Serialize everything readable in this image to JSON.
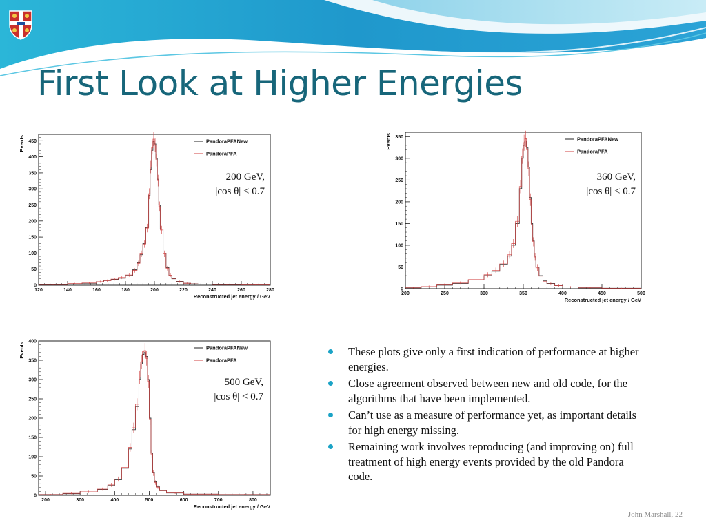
{
  "slide": {
    "title": "First Look at Higher Energies",
    "footer": "John Marshall, 22",
    "bullets": [
      "These plots give only a first indication of performance at higher energies.",
      "Close agreement observed between new and old code, for the algorithms that have been implemented.",
      "Can’t use as a measure of performance yet, as important details for high energy missing.",
      "Remaining work involves reproducing (and improving on) full treatment of high energy events provided by the old  Pandora code."
    ],
    "colors": {
      "title": "#17667a",
      "bullet": "#1ba3c6",
      "banner_dark": "#1a8fc4",
      "banner_light": "#9fd6ec"
    }
  },
  "chart_data": [
    {
      "type": "line",
      "title": "",
      "xlabel": "Reconstructed jet energy / GeV",
      "ylabel": "Events",
      "xlim": [
        120,
        280
      ],
      "ylim": [
        0,
        470
      ],
      "xticks": [
        120,
        140,
        160,
        180,
        200,
        220,
        240,
        260,
        280
      ],
      "yticks": [
        0,
        50,
        100,
        150,
        200,
        250,
        300,
        350,
        400,
        450
      ],
      "annotation": [
        "200 GeV,",
        "|cos θ| < 0.7"
      ],
      "legend": {
        "position": "top-right"
      },
      "series": [
        {
          "name": "PandoraPFANew",
          "color": "#222222",
          "x": [
            120,
            140,
            150,
            160,
            165,
            170,
            175,
            180,
            185,
            188,
            190,
            192,
            194,
            196,
            197,
            198,
            199,
            200,
            201,
            202,
            203,
            204,
            206,
            208,
            210,
            212,
            215,
            220,
            225,
            230,
            240,
            260,
            280
          ],
          "y": [
            2,
            4,
            6,
            10,
            15,
            18,
            22,
            30,
            48,
            70,
            95,
            130,
            180,
            280,
            360,
            420,
            448,
            440,
            395,
            330,
            250,
            175,
            100,
            55,
            30,
            20,
            12,
            6,
            4,
            3,
            2,
            1,
            1
          ]
        },
        {
          "name": "PandoraPFA",
          "color": "#d04040",
          "x": [
            120,
            140,
            150,
            160,
            165,
            170,
            175,
            180,
            185,
            188,
            190,
            192,
            194,
            196,
            197,
            198,
            199,
            200,
            201,
            202,
            203,
            204,
            206,
            208,
            210,
            212,
            215,
            220,
            225,
            230,
            240,
            260,
            280
          ],
          "y": [
            2,
            5,
            7,
            11,
            14,
            19,
            24,
            32,
            46,
            68,
            98,
            128,
            178,
            285,
            368,
            428,
            455,
            436,
            390,
            326,
            245,
            172,
            98,
            53,
            31,
            21,
            11,
            6,
            4,
            3,
            2,
            1,
            1
          ]
        }
      ]
    },
    {
      "type": "line",
      "title": "",
      "xlabel": "Reconstructed jet energy / GeV",
      "ylabel": "Events",
      "xlim": [
        200,
        500
      ],
      "ylim": [
        0,
        360
      ],
      "xticks": [
        200,
        250,
        300,
        350,
        400,
        450,
        500
      ],
      "yticks": [
        0,
        50,
        100,
        150,
        200,
        250,
        300,
        350
      ],
      "annotation": [
        "360 GeV,",
        "|cos θ| < 0.7"
      ],
      "legend": {
        "position": "top-right"
      },
      "series": [
        {
          "name": "PandoraPFANew",
          "color": "#222222",
          "x": [
            200,
            220,
            240,
            260,
            280,
            300,
            310,
            320,
            330,
            335,
            340,
            345,
            348,
            350,
            352,
            354,
            356,
            358,
            360,
            362,
            364,
            366,
            370,
            375,
            380,
            390,
            400,
            420,
            450,
            500
          ],
          "y": [
            2,
            4,
            8,
            12,
            20,
            30,
            40,
            55,
            75,
            100,
            150,
            230,
            300,
            330,
            340,
            325,
            280,
            210,
            150,
            110,
            75,
            50,
            30,
            18,
            12,
            7,
            4,
            2,
            1,
            1
          ]
        },
        {
          "name": "PandoraPFA",
          "color": "#d04040",
          "x": [
            200,
            220,
            240,
            260,
            280,
            300,
            310,
            320,
            330,
            335,
            340,
            345,
            348,
            350,
            352,
            354,
            356,
            358,
            360,
            362,
            364,
            366,
            370,
            375,
            380,
            390,
            400,
            420,
            450,
            500
          ],
          "y": [
            2,
            5,
            9,
            13,
            21,
            32,
            42,
            57,
            78,
            104,
            155,
            235,
            305,
            336,
            345,
            320,
            276,
            205,
            147,
            108,
            73,
            48,
            29,
            17,
            11,
            7,
            4,
            2,
            1,
            1
          ]
        }
      ]
    },
    {
      "type": "line",
      "title": "",
      "xlabel": "Reconstructed jet energy / GeV",
      "ylabel": "Events",
      "xlim": [
        180,
        850
      ],
      "ylim": [
        0,
        400
      ],
      "xticks": [
        200,
        300,
        400,
        500,
        600,
        700,
        800
      ],
      "yticks": [
        0,
        50,
        100,
        150,
        200,
        250,
        300,
        350,
        400
      ],
      "annotation": [
        "500 GeV,",
        "|cos θ| < 0.7"
      ],
      "legend": {
        "position": "top-right"
      },
      "series": [
        {
          "name": "PandoraPFANew",
          "color": "#222222",
          "x": [
            180,
            250,
            300,
            350,
            380,
            400,
            420,
            440,
            450,
            460,
            470,
            475,
            480,
            485,
            490,
            495,
            500,
            505,
            510,
            515,
            520,
            530,
            550,
            600,
            700,
            850
          ],
          "y": [
            2,
            4,
            8,
            15,
            25,
            40,
            70,
            120,
            170,
            230,
            300,
            340,
            365,
            370,
            360,
            300,
            200,
            110,
            60,
            35,
            22,
            12,
            6,
            3,
            2,
            1
          ]
        },
        {
          "name": "PandoraPFA",
          "color": "#d04040",
          "x": [
            180,
            250,
            300,
            350,
            380,
            400,
            420,
            440,
            450,
            460,
            470,
            475,
            480,
            485,
            490,
            495,
            500,
            505,
            510,
            515,
            520,
            530,
            550,
            600,
            700,
            850
          ],
          "y": [
            2,
            5,
            9,
            16,
            27,
            42,
            72,
            124,
            175,
            236,
            306,
            346,
            372,
            375,
            355,
            295,
            196,
            107,
            58,
            33,
            21,
            12,
            6,
            3,
            2,
            1
          ]
        }
      ]
    }
  ]
}
